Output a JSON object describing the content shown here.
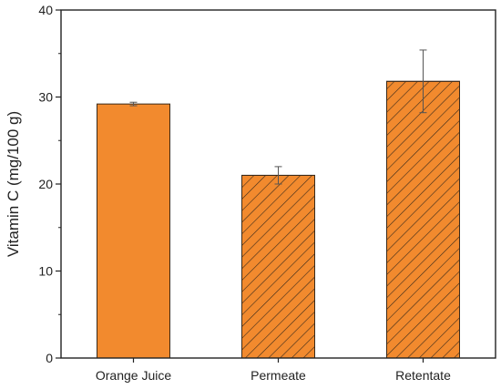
{
  "chart_data": {
    "type": "bar",
    "title": "",
    "xlabel": "",
    "ylabel": "Vitamin C (mg/100 g)",
    "ylim": [
      0,
      40
    ],
    "yticks": [
      0,
      10,
      20,
      30,
      40
    ],
    "categories": [
      "Orange Juice",
      "Permeate",
      "Retentate"
    ],
    "values": [
      29.2,
      21.0,
      31.8
    ],
    "errors": [
      0.2,
      1.0,
      3.6
    ],
    "fills": [
      "solid",
      "hatched",
      "hatched"
    ],
    "grid": false,
    "legend": "none"
  },
  "colors": {
    "bar": "#f28a2e",
    "bar_edge": "#3a2a1a",
    "hatch": "#3a2a1a",
    "axis": "#222222",
    "error": "#555555"
  }
}
